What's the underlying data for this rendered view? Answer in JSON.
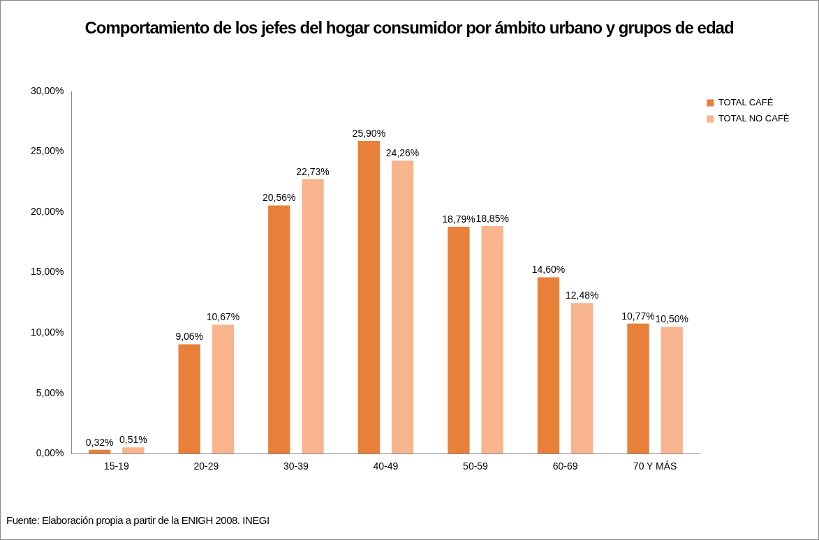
{
  "chart_data": {
    "type": "bar",
    "title": "Comportamiento de los jefes del hogar consumidor por ámbito urbano y grupos de edad",
    "categories": [
      "15-19",
      "20-29",
      "30-39",
      "40-49",
      "50-59",
      "60-69",
      "70 Y MÁS"
    ],
    "series": [
      {
        "name": "TOTAL CAFÉ",
        "color": "#e8803a",
        "values": [
          0.32,
          9.06,
          20.56,
          25.9,
          18.79,
          14.6,
          10.77
        ],
        "value_labels": [
          "0,32%",
          "9,06%",
          "20,56%",
          "25,90%",
          "18,79%",
          "14,60%",
          "10,77%"
        ]
      },
      {
        "name": "TOTAL NO CAFÈ",
        "color": "#f8b48c",
        "values": [
          0.51,
          10.67,
          22.73,
          24.26,
          18.85,
          12.48,
          10.5
        ],
        "value_labels": [
          "0,51%",
          "10,67%",
          "22,73%",
          "24,26%",
          "18,85%",
          "12,48%",
          "10,50%"
        ]
      }
    ],
    "ylim": [
      0,
      30
    ],
    "yticks": [
      {
        "value": 0,
        "label": "0,00%"
      },
      {
        "value": 5,
        "label": "5,00%"
      },
      {
        "value": 10,
        "label": "10,00%"
      },
      {
        "value": 15,
        "label": "15,00%"
      },
      {
        "value": 20,
        "label": "20,00%"
      },
      {
        "value": 25,
        "label": "25,00%"
      },
      {
        "value": 30,
        "label": "30,00%"
      }
    ],
    "grid": false,
    "legend": "top right",
    "annotations": [
      "Fuente: Elaboración propia a partir de la ENIGH 2008. INEGI"
    ]
  }
}
